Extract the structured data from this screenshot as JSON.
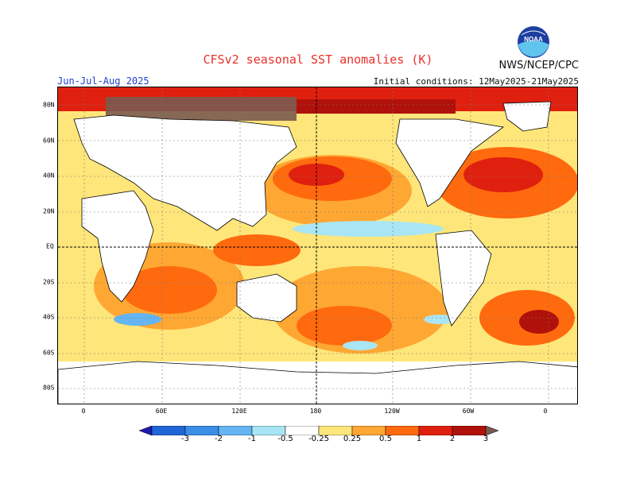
{
  "title": "CFSv2 seasonal SST anomalies (K)",
  "agency": "NWS/NCEP/CPC",
  "period": "Jun-Jul-Aug 2025",
  "initial_conditions": "Initial conditions: 12May2025-21May2025",
  "logo_text": "NOAA",
  "lat_labels": [
    "80N",
    "60N",
    "40N",
    "20N",
    "EQ",
    "20S",
    "40S",
    "60S",
    "80S"
  ],
  "lon_labels": [
    "0",
    "60E",
    "120E",
    "180",
    "120W",
    "60W",
    "0"
  ],
  "colorbar": {
    "levels": [
      "-3",
      "-2",
      "-1",
      "-0.5",
      "-0.25",
      "0.25",
      "0.5",
      "1",
      "2",
      "3"
    ],
    "colors": [
      "#1f1bb0",
      "#2166d6",
      "#3a8ee6",
      "#64b5f2",
      "#a9e6f5",
      "#ffffff",
      "#ffe67a",
      "#ffa733",
      "#ff6a0e",
      "#e0200e",
      "#b0110a",
      "#7a5a50"
    ]
  },
  "colors": {
    "land": "#ffffff",
    "ocean_warm": "#ffa733",
    "ocean_hot": "#ff6a0e",
    "ocean_vhot": "#e0200e",
    "ocean_mild": "#ffe67a",
    "ocean_cool": "#a9e6f5",
    "ocean_cold": "#64b5f2",
    "arctic": "#7a5a50",
    "title": "#e8302a",
    "period": "#2040d0"
  }
}
